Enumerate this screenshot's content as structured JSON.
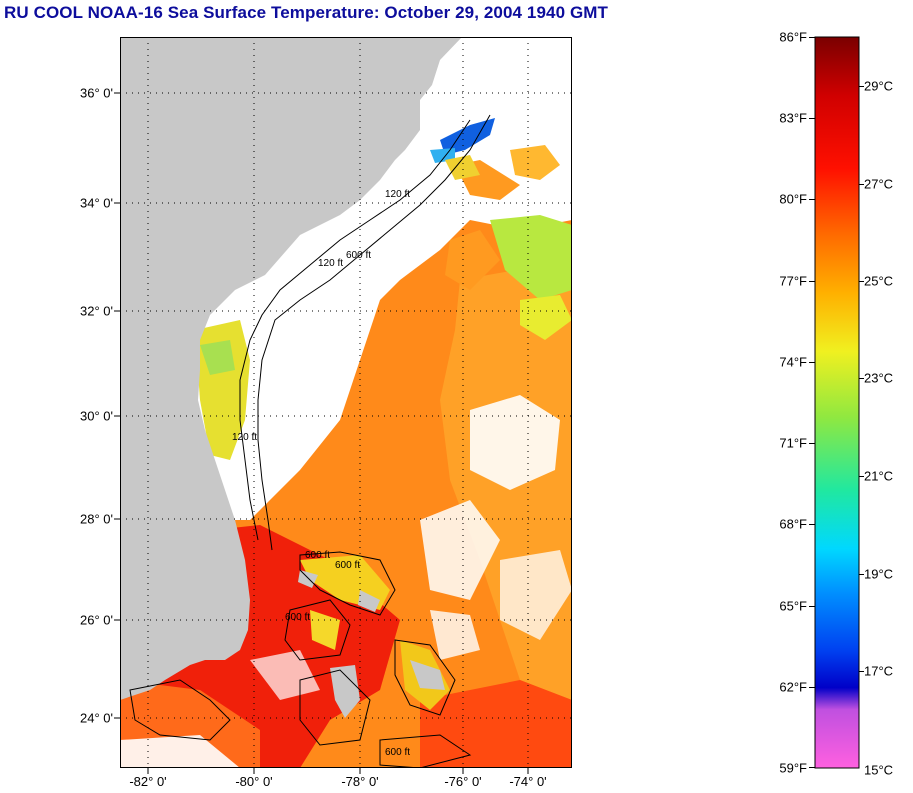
{
  "title": "RU COOL  NOAA-16  Sea Surface Temperature:  October 29, 2004 1940 GMT",
  "lat_labels": [
    "36° 0'",
    "34° 0'",
    "32° 0'",
    "30° 0'",
    "28° 0'",
    "26° 0'",
    "24° 0'"
  ],
  "lon_labels": [
    "-82° 0'",
    "-80° 0'",
    "-78° 0'",
    "-76° 0'",
    "-74° 0'"
  ],
  "contour_labels": [
    "120 ft",
    "600 ft",
    "120 ft",
    "600 ft",
    "120 ft",
    "600 ft",
    "600 ft",
    "600 ft"
  ],
  "colorbar": {
    "fahrenheit": [
      "86°F",
      "83°F",
      "80°F",
      "77°F",
      "74°F",
      "71°F",
      "68°F",
      "65°F",
      "62°F",
      "59°F"
    ],
    "celsius": [
      "29°C",
      "27°C",
      "25°C",
      "23°C",
      "21°C",
      "19°C",
      "17°C",
      "15°C"
    ],
    "f_range": [
      59,
      86
    ],
    "c_range": [
      15,
      30
    ],
    "gradient_colors": [
      "#ff60e0",
      "#b040e0",
      "#0000d0",
      "#0050ff",
      "#00c8ff",
      "#00e0a0",
      "#70e040",
      "#e8f020",
      "#ffc000",
      "#ff6000",
      "#ff0000",
      "#d00000",
      "#800000"
    ]
  },
  "colors": {
    "land": "#c8c8c8",
    "no_data": "#ffffff",
    "title": "#0d0d9c"
  }
}
